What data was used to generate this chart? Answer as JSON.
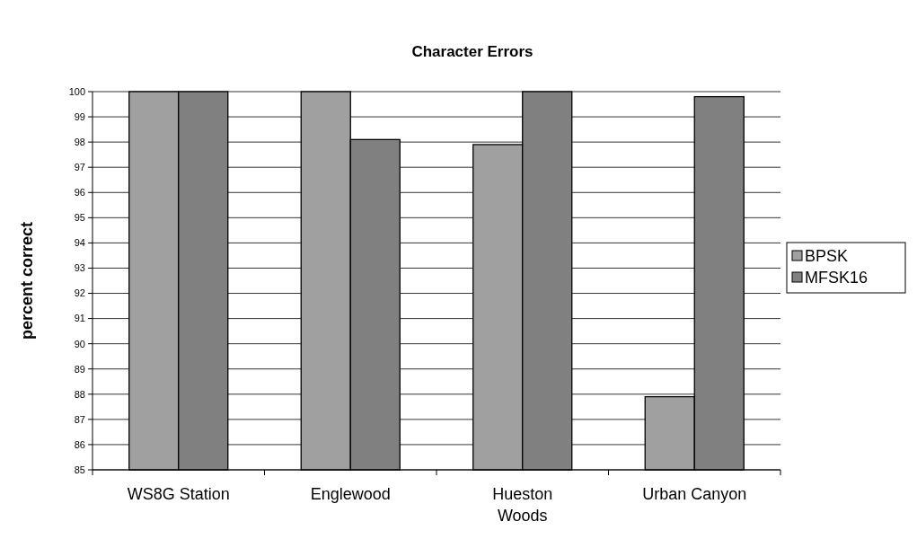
{
  "chart_data": {
    "type": "bar",
    "title": "Character Errors",
    "ylabel": "percent correct",
    "categories": [
      "WS8G Station",
      "Englewood",
      "Hueston Woods",
      "Urban Canyon"
    ],
    "series": [
      {
        "name": "BPSK",
        "color": "#a0a0a0",
        "values": [
          100,
          100,
          97.9,
          87.9
        ]
      },
      {
        "name": "MFSK16",
        "color": "#808080",
        "values": [
          100,
          98.1,
          100,
          99.8
        ]
      }
    ],
    "ylim": [
      85,
      100
    ],
    "yticks": [
      85,
      86,
      87,
      88,
      89,
      90,
      91,
      92,
      93,
      94,
      95,
      96,
      97,
      98,
      99,
      100
    ],
    "grid": "y",
    "legend": "right"
  }
}
